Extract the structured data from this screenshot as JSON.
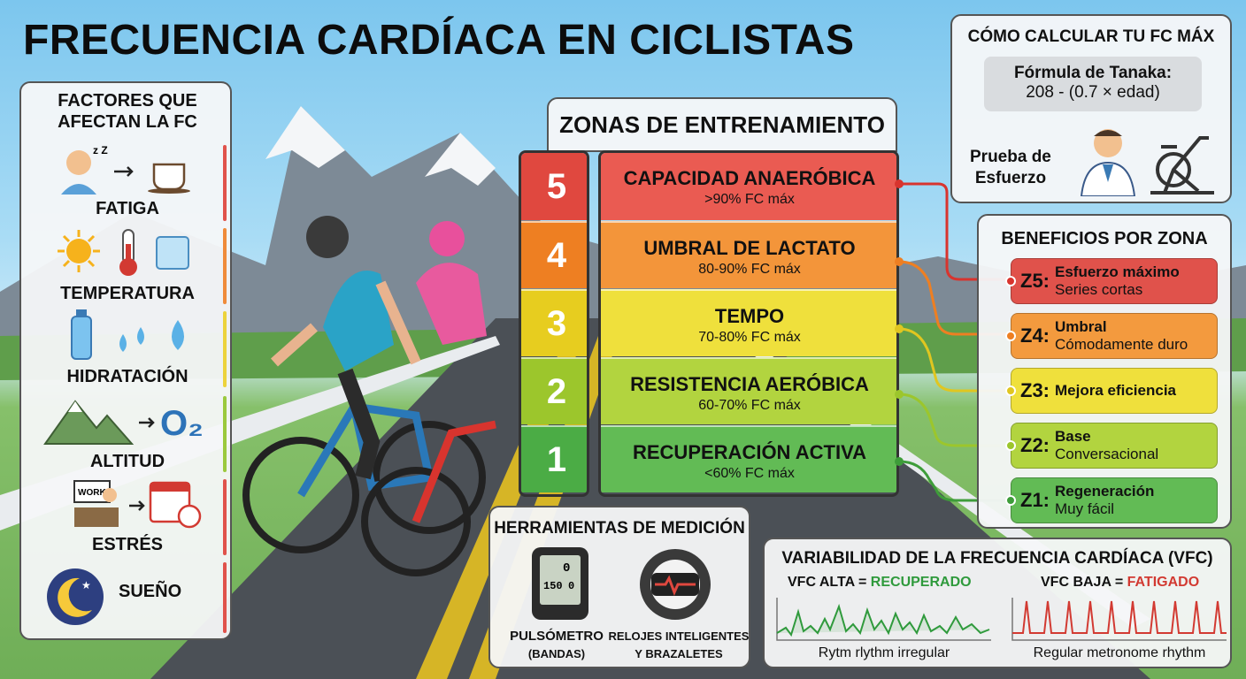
{
  "title": "FRECUENCIA CARDÍACA EN CICLISTAS",
  "factors": {
    "heading_line1": "FACTORES QUE",
    "heading_line2": "AFECTAN LA FC",
    "items": [
      {
        "label": "FATIGA",
        "icon": "tired-person-coffee-icon",
        "color": "#e0524b"
      },
      {
        "label": "TEMPERATURA",
        "icon": "sun-thermometer-ice-icon",
        "color": "#ef8b3a"
      },
      {
        "label": "HIDRATACIÓN",
        "icon": "water-bottle-drops-icon",
        "color": "#ecd33c"
      },
      {
        "label": "ALTITUD",
        "icon": "mountain-oxygen-icon",
        "color": "#9bc93d"
      },
      {
        "label": "ESTRÉS",
        "icon": "work-calendar-clock-icon",
        "color": "#e0524b"
      },
      {
        "label": "SUEÑO",
        "icon": "moon-stars-icon",
        "color": "#e0524b"
      }
    ],
    "o2": "O₂",
    "work": "WORK"
  },
  "zones": {
    "heading": "ZONAS DE ENTRENAMIENTO",
    "items": [
      {
        "num": "5",
        "name": "CAPACIDAD ANAERÓBICA",
        "pct": ">90% FC máx",
        "color": "#e0483f",
        "bg": "#ea5b52"
      },
      {
        "num": "4",
        "name": "UMBRAL DE LACTATO",
        "pct": "80-90% FC máx",
        "color": "#ee7f22",
        "bg": "#f3953a"
      },
      {
        "num": "3",
        "name": "TEMPO",
        "pct": "70-80% FC máx",
        "color": "#e7cd1f",
        "bg": "#efe03c"
      },
      {
        "num": "2",
        "name": "RESISTENCIA AERÓBICA",
        "pct": "60-70% FC máx",
        "color": "#9cc62c",
        "bg": "#b2d43f"
      },
      {
        "num": "1",
        "name": "RECUPERACIÓN ACTIVA",
        "pct": "<60% FC máx",
        "color": "#4bac45",
        "bg": "#62bb55"
      }
    ]
  },
  "calc": {
    "heading": "CÓMO CALCULAR TU FC MÁX",
    "formula_label": "Fórmula de Tanaka:",
    "formula": "208 - (0.7 × edad)",
    "test_line1": "Prueba de",
    "test_line2": "Esfuerzo",
    "doctor_icon": "doctor-icon",
    "bike_icon": "stationary-bike-icon"
  },
  "benefits": {
    "heading": "BENEFICIOS POR ZONA",
    "items": [
      {
        "zone": "Z5:",
        "line1": "Esfuerzo máximo",
        "line2": "Series cortas",
        "color": "#e0524b"
      },
      {
        "zone": "Z4:",
        "line1": "Umbral",
        "line2": "Cómodamente duro",
        "color": "#f39a3e"
      },
      {
        "zone": "Z3:",
        "line1": "Mejora eficiencia",
        "line2": "",
        "color": "#efe03c"
      },
      {
        "zone": "Z2:",
        "line1": "Base",
        "line2": "Conversacional",
        "color": "#b2d43f"
      },
      {
        "zone": "Z1:",
        "line1": "Regeneración",
        "line2": "Muy fácil",
        "color": "#62bb55"
      }
    ]
  },
  "tools": {
    "heading": "HERRAMIENTAS DE MEDICIÓN",
    "item1_line1": "PULSÓMETRO",
    "item1_line2": "(BANDAS)",
    "item2_line1": "RELOJES INTELIGENTES",
    "item2_line2": "Y BRAZALETES",
    "screen_top": "0",
    "screen_mid": "150",
    "screen_right": "0"
  },
  "hrv": {
    "heading": "VARIABILIDAD DE LA FRECUENCIA CARDÍACA (VFC)",
    "high_prefix": "VFC ALTA = ",
    "high_value": "RECUPERADO",
    "low_prefix": "VFC BAJA = ",
    "low_value": "FATIGADO",
    "high_caption": "Rytm rlythm irregular",
    "low_caption": "Regular metronome rhythm",
    "high_color": "#2f9a3c",
    "low_color": "#d23a32"
  }
}
